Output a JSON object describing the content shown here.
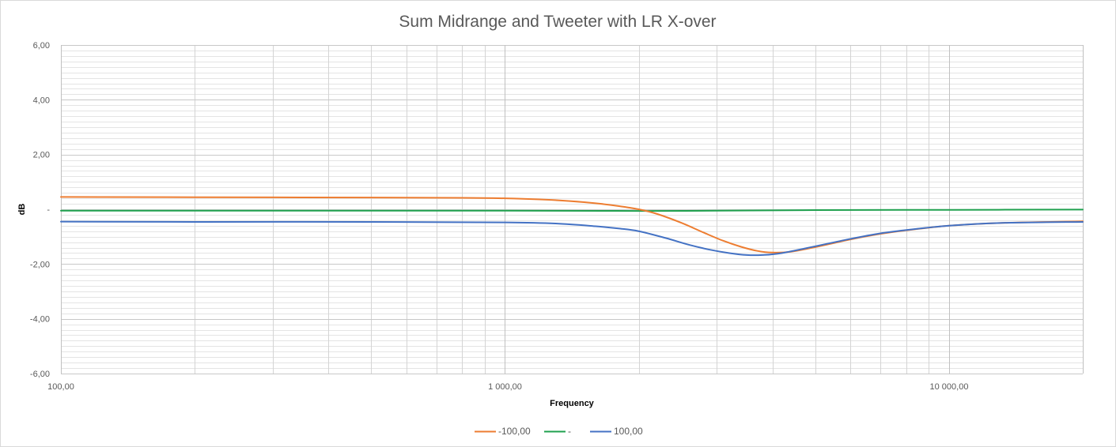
{
  "chart_data": {
    "type": "line",
    "title": "Sum Midrange and Tweeter with LR X-over",
    "xlabel": "Frequency",
    "ylabel": "dB",
    "x_scale": "log",
    "xlim": [
      100,
      20000
    ],
    "ylim": [
      -6,
      6
    ],
    "y_major_step": 2,
    "y_minor_step": 0.2,
    "grid": true,
    "legend_position": "bottom",
    "x_ticks": [
      {
        "value": 100,
        "label": "100,00"
      },
      {
        "value": 1000,
        "label": "1 000,00"
      },
      {
        "value": 10000,
        "label": "10 000,00"
      }
    ],
    "y_ticks": [
      {
        "value": 6,
        "label": "6,00"
      },
      {
        "value": 4,
        "label": "4,00"
      },
      {
        "value": 2,
        "label": "2,00"
      },
      {
        "value": 0,
        "label": "-"
      },
      {
        "value": -2,
        "label": "-2,00"
      },
      {
        "value": -4,
        "label": "-4,00"
      },
      {
        "value": -6,
        "label": "-6,00"
      }
    ],
    "series": [
      {
        "name": "-100,00",
        "color": "#ED7D31",
        "points": [
          [
            100,
            0.45
          ],
          [
            200,
            0.44
          ],
          [
            500,
            0.43
          ],
          [
            800,
            0.42
          ],
          [
            1000,
            0.4
          ],
          [
            1200,
            0.36
          ],
          [
            1400,
            0.3
          ],
          [
            1600,
            0.22
          ],
          [
            1800,
            0.12
          ],
          [
            2000,
            0.0
          ],
          [
            2200,
            -0.17
          ],
          [
            2500,
            -0.5
          ],
          [
            2800,
            -0.85
          ],
          [
            3100,
            -1.15
          ],
          [
            3400,
            -1.37
          ],
          [
            3700,
            -1.52
          ],
          [
            4000,
            -1.58
          ],
          [
            4400,
            -1.55
          ],
          [
            5000,
            -1.38
          ],
          [
            6000,
            -1.1
          ],
          [
            7000,
            -0.9
          ],
          [
            8000,
            -0.77
          ],
          [
            10000,
            -0.6
          ],
          [
            13000,
            -0.5
          ],
          [
            20000,
            -0.44
          ]
        ]
      },
      {
        "name": "-",
        "color": "#1FA04E",
        "points": [
          [
            100,
            -0.05
          ],
          [
            1000,
            -0.05
          ],
          [
            2000,
            -0.06
          ],
          [
            3000,
            -0.05
          ],
          [
            5000,
            -0.03
          ],
          [
            10000,
            -0.02
          ],
          [
            20000,
            -0.01
          ]
        ]
      },
      {
        "name": "100,00",
        "color": "#4472C4",
        "points": [
          [
            100,
            -0.45
          ],
          [
            200,
            -0.46
          ],
          [
            500,
            -0.46
          ],
          [
            1000,
            -0.48
          ],
          [
            1300,
            -0.52
          ],
          [
            1600,
            -0.62
          ],
          [
            1800,
            -0.7
          ],
          [
            2000,
            -0.8
          ],
          [
            2300,
            -1.05
          ],
          [
            2600,
            -1.3
          ],
          [
            2900,
            -1.48
          ],
          [
            3200,
            -1.6
          ],
          [
            3500,
            -1.67
          ],
          [
            3800,
            -1.67
          ],
          [
            4200,
            -1.6
          ],
          [
            5000,
            -1.35
          ],
          [
            6000,
            -1.08
          ],
          [
            7000,
            -0.88
          ],
          [
            8000,
            -0.76
          ],
          [
            10000,
            -0.6
          ],
          [
            13000,
            -0.5
          ],
          [
            20000,
            -0.46
          ]
        ]
      }
    ]
  }
}
